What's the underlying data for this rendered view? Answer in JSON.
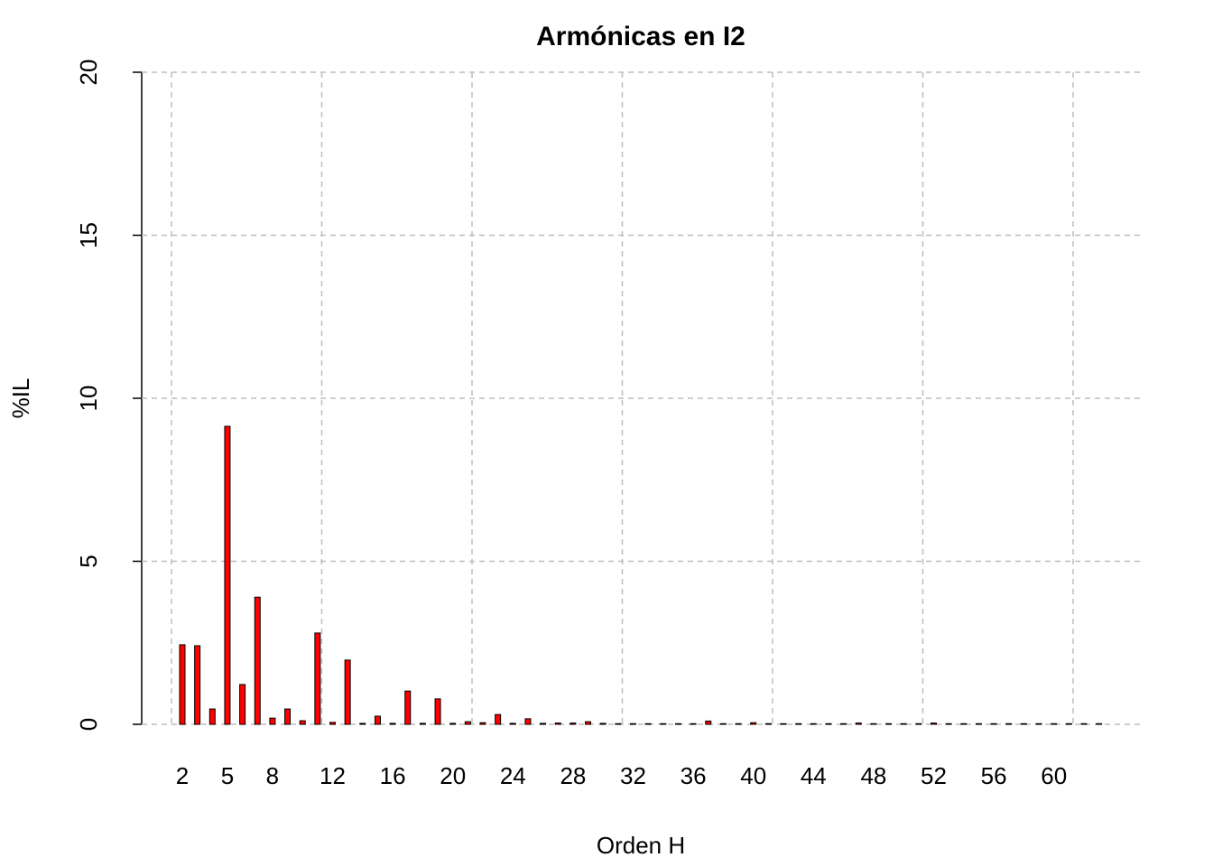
{
  "chart_data": {
    "type": "bar",
    "title": "Armónicas en I2",
    "x_label": "Orden H",
    "y_label": "%IL",
    "categories": [
      "2",
      null,
      null,
      "5",
      null,
      null,
      "8",
      null,
      null,
      null,
      "12",
      null,
      null,
      null,
      "16",
      null,
      null,
      null,
      "20",
      null,
      null,
      null,
      "24",
      null,
      null,
      null,
      "28",
      null,
      null,
      null,
      "32",
      null,
      null,
      null,
      "36",
      null,
      null,
      null,
      "40",
      null,
      null,
      null,
      "44",
      null,
      null,
      null,
      "48",
      null,
      null,
      null,
      "52",
      null,
      null,
      null,
      "56",
      null,
      null,
      null,
      "60",
      null,
      null,
      null
    ],
    "values": [
      2.44,
      2.41,
      0.47,
      9.14,
      1.22,
      3.9,
      0.19,
      0.47,
      0.11,
      2.8,
      0.06,
      1.97,
      0.03,
      0.25,
      0.03,
      1.02,
      0.03,
      0.78,
      0.03,
      0.08,
      0.05,
      0.3,
      0.03,
      0.17,
      0.03,
      0.04,
      0.04,
      0.08,
      0.03,
      0.02,
      0.02,
      0.02,
      0.02,
      0.02,
      0.02,
      0.1,
      0.02,
      0.02,
      0.05,
      0.02,
      0.02,
      0.02,
      0.02,
      0.02,
      0.02,
      0.04,
      0.02,
      0.02,
      0.02,
      0.02,
      0.04,
      0.02,
      0.02,
      0.02,
      0.02,
      0.02,
      0.02,
      0.02,
      0.02,
      0.02,
      0.02,
      0.02
    ],
    "color": "#ff0000",
    "ylim": [
      0,
      20
    ],
    "yticks": [
      0,
      5,
      10,
      15,
      20
    ],
    "grid": true
  }
}
